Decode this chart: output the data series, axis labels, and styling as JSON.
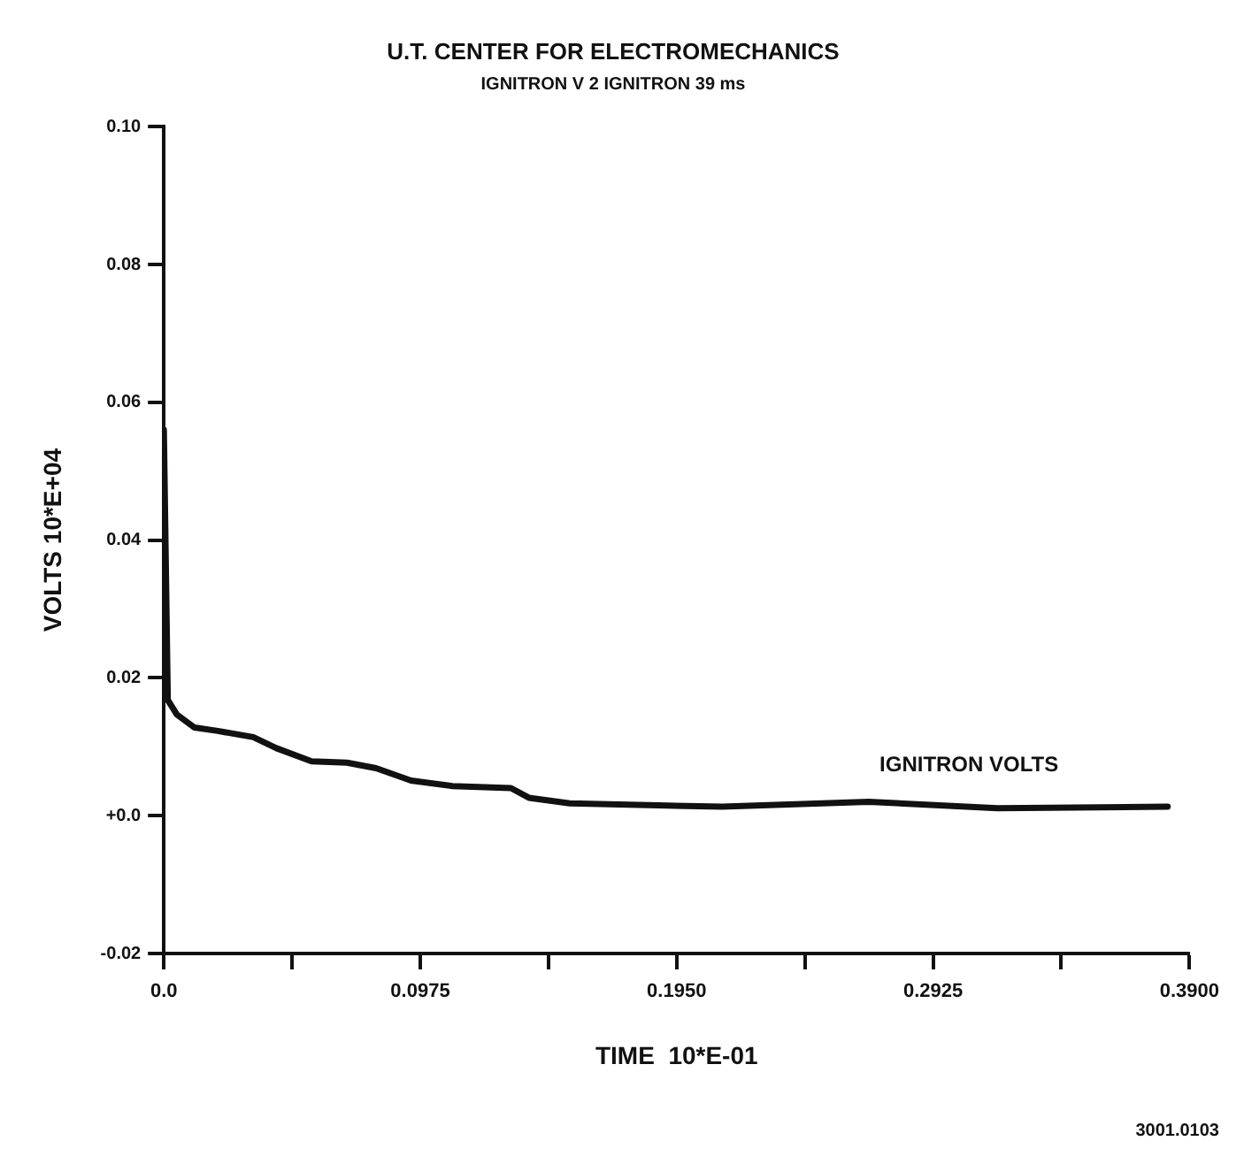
{
  "chart_data": {
    "type": "line",
    "title": "U.T. CENTER FOR ELECTROMECHANICS",
    "subtitle": "IGNITRON V 2 IGNITRON 39 ms",
    "xlabel": "TIME  10*E-01",
    "ylabel": "VOLTS 10*E+04",
    "series": [
      {
        "color": "#111111",
        "x": [
          0,
          0.0015,
          0.0049,
          0.0116,
          0.0205,
          0.034,
          0.0428,
          0.0562,
          0.0696,
          0.0807,
          0.094,
          0.1097,
          0.132,
          0.1388,
          0.1543,
          0.188,
          0.2123,
          0.268,
          0.317,
          0.3817
        ],
        "values": [
          0.056,
          0.0168,
          0.0147,
          0.0128,
          0.0123,
          0.0114,
          0.0098,
          0.0079,
          0.0077,
          0.0069,
          0.0051,
          0.0043,
          0.004,
          0.0026,
          0.0018,
          0.0015,
          0.0013,
          0.002,
          0.0011,
          0.0013
        ]
      }
    ],
    "xlim": [
      0,
      0.39
    ],
    "xticks": [
      {
        "value": 0,
        "label": "0.0"
      },
      {
        "value": 0.04875,
        "label": null
      },
      0.0975,
      {
        "value": 0.14625,
        "label": null
      },
      {
        "value": 0.195,
        "label": "0.1950"
      },
      {
        "value": 0.24375,
        "label": null
      },
      0.2925,
      {
        "value": 0.34125,
        "label": null
      },
      {
        "value": 0.39,
        "label": "0.3900"
      }
    ],
    "ylim": [
      -0.02,
      0.1
    ],
    "yticks": [
      -0.02,
      {
        "value": 0,
        "label": "+0.0"
      },
      0.02,
      0.04,
      0.06,
      0.08,
      {
        "value": 0.1,
        "label": "0.10"
      }
    ],
    "grid": false,
    "legend": false,
    "marker": "none",
    "line_style": "solid",
    "annotations": [
      "IGNITRON VOLTS",
      "3001.0103"
    ]
  }
}
